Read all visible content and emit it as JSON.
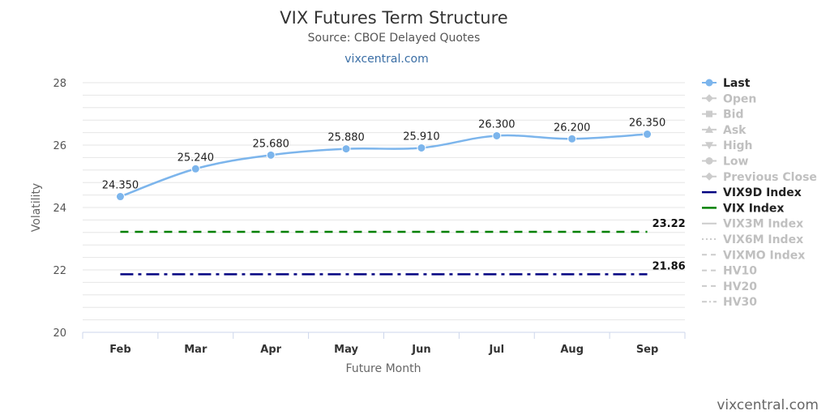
{
  "header": {
    "title": "VIX Futures Term Structure",
    "subtitle": "Source: CBOE Delayed Quotes",
    "link": "vixcentral.com"
  },
  "credit": "vixcentral.com",
  "colors": {
    "last": "#7cb5ec",
    "vix9d": "#000080",
    "vix": "#008000",
    "inactive": "#cccccc",
    "grid": "#e6e6e6"
  },
  "chart_data": {
    "type": "line",
    "xlabel": "Future Month",
    "ylabel": "Volatility",
    "ylim": [
      20,
      28
    ],
    "yticks": [
      20,
      22,
      24,
      26,
      28
    ],
    "categories": [
      "Feb",
      "Mar",
      "Apr",
      "May",
      "Jun",
      "Jul",
      "Aug",
      "Sep"
    ],
    "series": [
      {
        "name": "Last",
        "values": [
          24.35,
          25.24,
          25.68,
          25.88,
          25.91,
          26.3,
          26.2,
          26.35
        ],
        "labels": [
          "24.350",
          "25.240",
          "25.680",
          "25.880",
          "25.910",
          "26.300",
          "26.200",
          "26.350"
        ]
      }
    ],
    "reference_lines": [
      {
        "name": "VIX Index",
        "value": 23.22,
        "label": "23.22",
        "style": "dashed"
      },
      {
        "name": "VIX9D Index",
        "value": 21.86,
        "label": "21.86",
        "style": "dashdot"
      }
    ],
    "legend": {
      "placement": "right",
      "items": [
        {
          "name": "Last",
          "marker": "circle",
          "active": true
        },
        {
          "name": "Open",
          "marker": "diamond",
          "active": false
        },
        {
          "name": "Bid",
          "marker": "square",
          "active": false
        },
        {
          "name": "Ask",
          "marker": "triangle",
          "active": false
        },
        {
          "name": "High",
          "marker": "triangle-down",
          "active": false
        },
        {
          "name": "Low",
          "marker": "circle",
          "active": false
        },
        {
          "name": "Previous Close",
          "marker": "diamond",
          "active": false
        },
        {
          "name": "VIX9D Index",
          "marker": "line",
          "active": true
        },
        {
          "name": "VIX Index",
          "marker": "line",
          "active": true
        },
        {
          "name": "VIX3M Index",
          "marker": "line",
          "active": false
        },
        {
          "name": "VIX6M Index",
          "marker": "dotted",
          "active": false
        },
        {
          "name": "VIXMO Index",
          "marker": "dashed",
          "active": false
        },
        {
          "name": "HV10",
          "marker": "dashed",
          "active": false
        },
        {
          "name": "HV20",
          "marker": "dashed",
          "active": false
        },
        {
          "name": "HV30",
          "marker": "dashdot",
          "active": false
        }
      ]
    }
  }
}
